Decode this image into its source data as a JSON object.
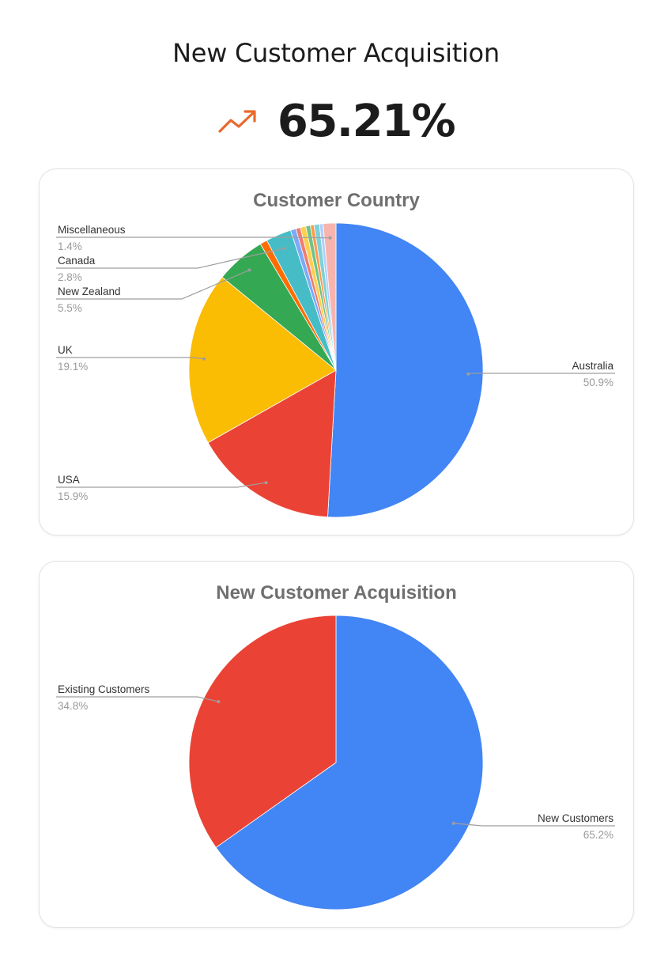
{
  "header": {
    "title": "New Customer Acquisition",
    "metric_value": "65.21%",
    "trend_icon": "trending-up-icon",
    "trend_color": "#e8692c"
  },
  "chart_data": [
    {
      "type": "pie",
      "title": "Customer Country",
      "slices": [
        {
          "label": "Australia",
          "value": 50.9,
          "pct_label": "50.9%",
          "color": "#4285f4"
        },
        {
          "label": "USA",
          "value": 15.9,
          "pct_label": "15.9%",
          "color": "#ea4335"
        },
        {
          "label": "UK",
          "value": 19.1,
          "pct_label": "19.1%",
          "color": "#fbbc04"
        },
        {
          "label": "New Zealand",
          "value": 5.5,
          "pct_label": "5.5%",
          "color": "#34a853"
        },
        {
          "label": "",
          "value": 0.8,
          "pct_label": "",
          "color": "#ff6d01"
        },
        {
          "label": "Canada",
          "value": 2.8,
          "pct_label": "2.8%",
          "color": "#46bdc6"
        },
        {
          "label": "",
          "value": 0.6,
          "pct_label": "",
          "color": "#7baaf7"
        },
        {
          "label": "",
          "value": 0.5,
          "pct_label": "",
          "color": "#f07b72"
        },
        {
          "label": "",
          "value": 0.6,
          "pct_label": "",
          "color": "#fcd04f"
        },
        {
          "label": "",
          "value": 0.5,
          "pct_label": "",
          "color": "#71c287"
        },
        {
          "label": "",
          "value": 0.4,
          "pct_label": "",
          "color": "#ff994d"
        },
        {
          "label": "",
          "value": 0.6,
          "pct_label": "",
          "color": "#7ed1d7"
        },
        {
          "label": "",
          "value": 0.4,
          "pct_label": "",
          "color": "#b3cefb"
        },
        {
          "label": "Miscellaneous",
          "value": 1.4,
          "pct_label": "1.4%",
          "color": "#f7b4ae"
        }
      ],
      "legend": "labels-with-leader-lines"
    },
    {
      "type": "pie",
      "title": "New Customer Acquisition",
      "slices": [
        {
          "label": "New Customers",
          "value": 65.2,
          "pct_label": "65.2%",
          "color": "#4285f4"
        },
        {
          "label": "Existing Customers",
          "value": 34.8,
          "pct_label": "34.8%",
          "color": "#ea4335"
        }
      ],
      "legend": "labels-with-leader-lines"
    }
  ]
}
